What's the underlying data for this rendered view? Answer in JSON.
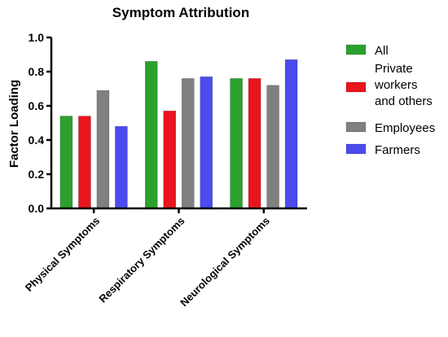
{
  "chart_data": {
    "type": "bar",
    "title": "Symptom Attribution",
    "xlabel": "",
    "ylabel": "Factor Loading",
    "ylim": [
      0,
      1.0
    ],
    "yticks": [
      "0.0",
      "0.2",
      "0.4",
      "0.6",
      "0.8",
      "1.0"
    ],
    "categories": [
      "Physical Symptoms",
      "Respiratory Symptoms",
      "Neurological Symptoms"
    ],
    "series": [
      {
        "name": "All",
        "values": [
          0.54,
          0.86,
          0.76
        ],
        "color": "#2ca02c"
      },
      {
        "name": "Private workers and others",
        "values": [
          0.54,
          0.57,
          0.76
        ],
        "color": "#e8141e"
      },
      {
        "name": "Employees",
        "values": [
          0.69,
          0.76,
          0.72
        ],
        "color": "#808080"
      },
      {
        "name": "Farmers",
        "values": [
          0.48,
          0.77,
          0.87
        ],
        "color": "#4b4bf0"
      }
    ],
    "legend": {
      "placement": "right",
      "labels": [
        "All",
        [
          "Private",
          "workers",
          "and others"
        ],
        "Employees",
        "Farmers"
      ]
    }
  }
}
